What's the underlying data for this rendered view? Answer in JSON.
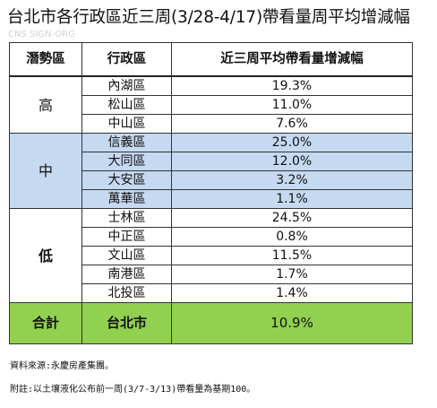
{
  "title": "台北市各行政區近三周(3/28-4/17)帶看量周平均增減幅",
  "watermark": "CNS SIGN-ORG",
  "table": {
    "headers": [
      "潛勢區",
      "行政區",
      "近三周平均帶看量增減幅"
    ],
    "groups": [
      {
        "label": "高",
        "rows": [
          {
            "district": "內湖區",
            "value": "19.3%"
          },
          {
            "district": "松山區",
            "value": "11.0%"
          },
          {
            "district": "中山區",
            "value": "7.6%"
          }
        ]
      },
      {
        "label": "中",
        "rows": [
          {
            "district": "信義區",
            "value": "25.0%"
          },
          {
            "district": "大同區",
            "value": "12.0%"
          },
          {
            "district": "大安區",
            "value": "3.2%"
          },
          {
            "district": "萬華區",
            "value": "1.1%"
          }
        ]
      },
      {
        "label": "低",
        "rows": [
          {
            "district": "士林區",
            "value": "24.5%"
          },
          {
            "district": "中正區",
            "value": "0.8%"
          },
          {
            "district": "文山區",
            "value": "11.5%"
          },
          {
            "district": "南港區",
            "value": "1.7%"
          },
          {
            "district": "北投區",
            "value": "1.4%"
          }
        ]
      }
    ],
    "total": {
      "label": "合計",
      "district": "台北市",
      "value": "10.9%"
    }
  },
  "notes": {
    "source": "資料來源:永慶房產集團。",
    "remark": "附註:以土壤液化公布前一周(3/7-3/13)帶看量為基期100。"
  },
  "colors": {
    "mid_group": "#c5d9f1",
    "total_row": "#92d050"
  }
}
